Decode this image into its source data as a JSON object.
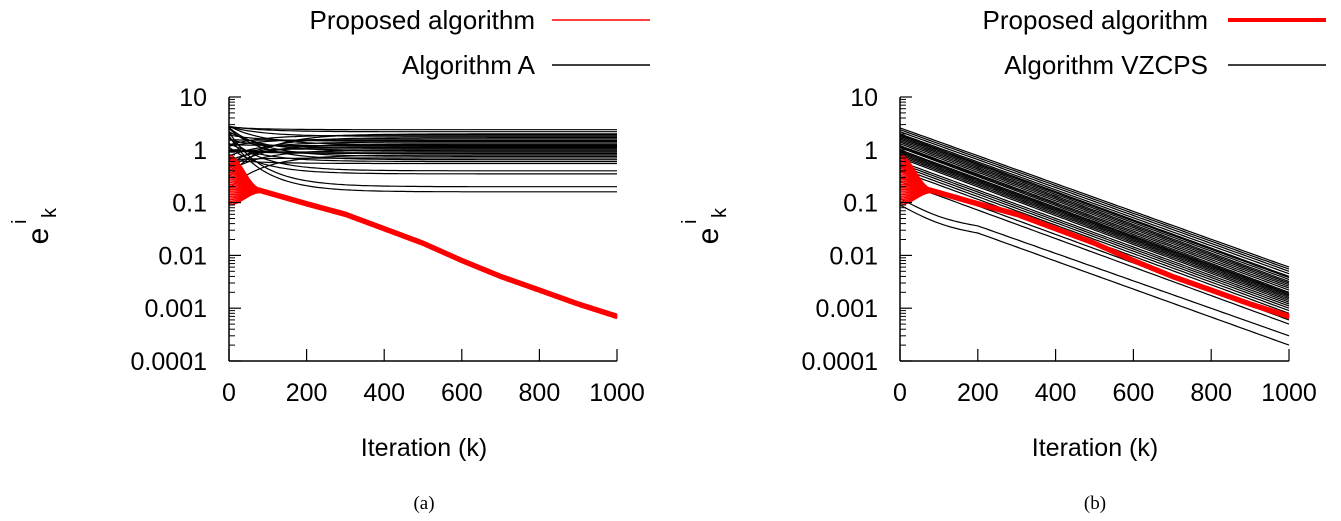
{
  "colors": {
    "proposed": "#ff0000",
    "baseline": "#000000",
    "axis": "#000000"
  },
  "chart_data": [
    {
      "type": "line",
      "caption": "(a)",
      "xlabel": "Iteration (k)",
      "ylabel_base": "e",
      "ylabel_sub": "k",
      "ylabel_sup": "i",
      "xlim": [
        0,
        1000
      ],
      "ylim": [
        0.0001,
        10
      ],
      "yscale": "log",
      "x_ticks": [
        "0",
        "200",
        "400",
        "600",
        "800",
        "1000"
      ],
      "y_ticks": [
        "0.0001",
        "0.001",
        "0.01",
        "0.1",
        "1",
        "10"
      ],
      "legend_position": "top",
      "series": [
        {
          "name": "Proposed algorithm",
          "color": "#ff0000",
          "agents": 30,
          "start_range": [
            0.09,
            0.8
          ],
          "converged_by": 80,
          "x": [
            80,
            200,
            300,
            400,
            500,
            600,
            700,
            800,
            900,
            1000
          ],
          "y": [
            0.17,
            0.095,
            0.06,
            0.032,
            0.017,
            0.008,
            0.004,
            0.0022,
            0.0012,
            0.0007
          ],
          "band_width_decades": 0.08
        },
        {
          "name": "Algorithm A",
          "color": "#000000",
          "agents": 30,
          "note_start_range": [
            0.1,
            3.0
          ],
          "final_values": [
            2.4,
            2.2,
            2.0,
            1.9,
            1.8,
            1.7,
            1.6,
            1.5,
            1.45,
            1.4,
            1.3,
            1.25,
            1.2,
            1.15,
            1.1,
            1.05,
            1.0,
            0.95,
            0.9,
            0.85,
            0.8,
            0.75,
            0.7,
            0.65,
            0.6,
            0.55,
            0.4,
            0.35,
            0.2,
            0.16
          ]
        }
      ]
    },
    {
      "type": "line",
      "caption": "(b)",
      "xlabel": "Iteration (k)",
      "ylabel_base": "e",
      "ylabel_sub": "k",
      "ylabel_sup": "i",
      "xlim": [
        0,
        1000
      ],
      "ylim": [
        0.0001,
        10
      ],
      "yscale": "log",
      "x_ticks": [
        "0",
        "200",
        "400",
        "600",
        "800",
        "1000"
      ],
      "y_ticks": [
        "0.0001",
        "0.001",
        "0.01",
        "0.1",
        "1",
        "10"
      ],
      "legend_position": "top",
      "series": [
        {
          "name": "Proposed algorithm",
          "color": "#ff0000",
          "agents": 30,
          "start_range": [
            0.09,
            0.8
          ],
          "converged_by": 80,
          "x": [
            80,
            200,
            300,
            400,
            500,
            600,
            700,
            800,
            900,
            1000
          ],
          "y": [
            0.17,
            0.095,
            0.06,
            0.032,
            0.017,
            0.008,
            0.004,
            0.0022,
            0.0012,
            0.0007
          ],
          "band_width_decades": 0.08
        },
        {
          "name": "Algorithm VZCPS",
          "color": "#000000",
          "agents": 30,
          "start_values": [
            2.6,
            2.4,
            2.2,
            2.0,
            1.9,
            1.8,
            1.7,
            1.6,
            1.5,
            1.4,
            1.3,
            1.2,
            1.15,
            1.1,
            1.0,
            0.95,
            0.9,
            0.85,
            0.8,
            0.75,
            0.7,
            0.6,
            0.55,
            0.5,
            0.45,
            0.4,
            0.3,
            0.25,
            0.12,
            0.09
          ],
          "end_values": [
            0.006,
            0.0055,
            0.005,
            0.0045,
            0.004,
            0.0038,
            0.0035,
            0.0032,
            0.003,
            0.0028,
            0.0026,
            0.0024,
            0.0022,
            0.002,
            0.0019,
            0.0018,
            0.0017,
            0.0016,
            0.0015,
            0.0014,
            0.0013,
            0.0012,
            0.0011,
            0.001,
            0.0009,
            0.0008,
            0.0006,
            0.0005,
            0.0003,
            0.0002
          ]
        }
      ]
    }
  ]
}
